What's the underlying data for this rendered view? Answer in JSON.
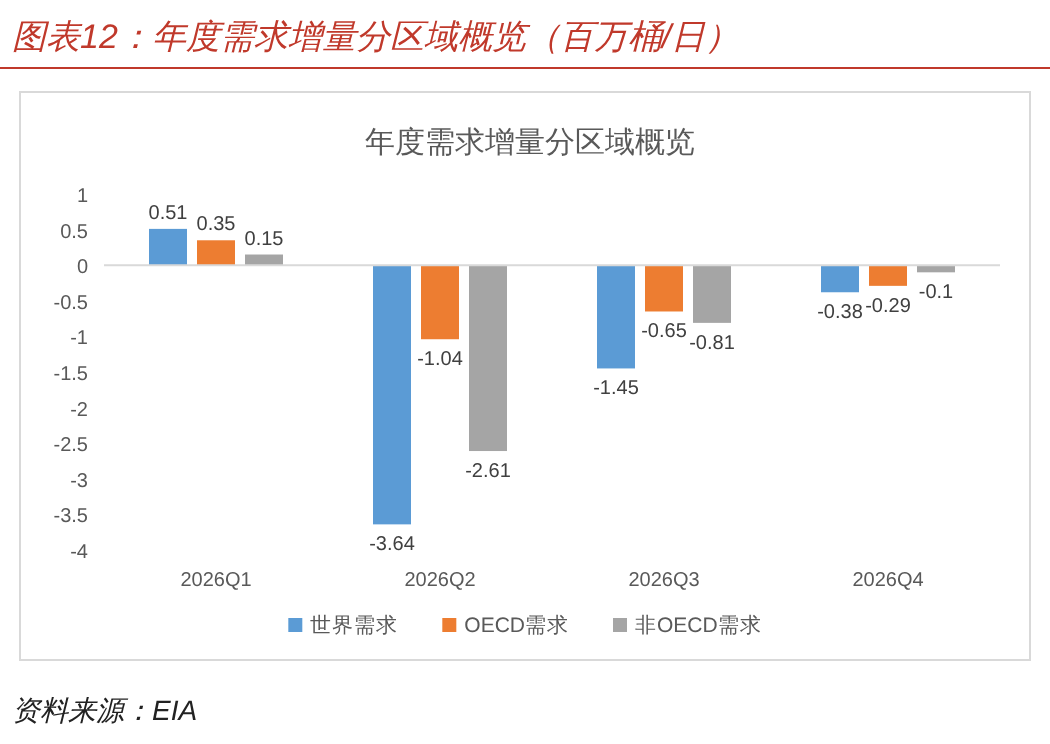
{
  "chart_data": {
    "type": "bar",
    "title": "图表12：年度需求增量分区域概览（百万桶/日）",
    "subtitle": "年度需求增量分区域概览",
    "categories": [
      "2026Q1",
      "2026Q2",
      "2026Q3",
      "2026Q4"
    ],
    "series": [
      {
        "name": "世界需求",
        "color": "#5b9bd5",
        "values": [
          0.51,
          -3.64,
          -1.45,
          -0.38
        ]
      },
      {
        "name": "OECD需求",
        "color": "#ed7d31",
        "values": [
          0.35,
          -1.04,
          -0.65,
          -0.29
        ]
      },
      {
        "name": "非OECD需求",
        "color": "#a5a5a5",
        "values": [
          0.15,
          -2.61,
          -0.81,
          -0.1
        ]
      }
    ],
    "ylim": [
      -4,
      1
    ],
    "yticks": [
      -4,
      -3.5,
      -3,
      -2.5,
      -2,
      -1.5,
      -1,
      -0.5,
      0,
      0.5,
      1
    ],
    "legend": "bottom",
    "data_labels": true,
    "annotations": [
      "资料来源：EIA"
    ]
  }
}
